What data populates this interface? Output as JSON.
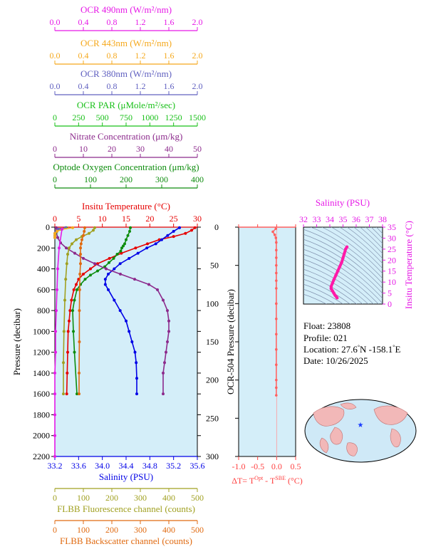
{
  "chart_data": [
    {
      "type": "line",
      "panel": "main-profile",
      "ylabel": "Pressure (decibar)",
      "ylim": [
        0,
        2200
      ],
      "yticks": [
        "0",
        "200",
        "400",
        "600",
        "800",
        "1000",
        "1200",
        "1400",
        "1600",
        "1800",
        "2000",
        "2200"
      ],
      "grid": false,
      "background": "#d4eef9",
      "top_axes": [
        {
          "key": "ocr490",
          "label": "OCR 490nm (W/m²/nm)",
          "color": "#e619e6",
          "range": [
            0,
            2
          ],
          "ticks": [
            "0.0",
            "0.4",
            "0.8",
            "1.2",
            "1.6",
            "2.0"
          ]
        },
        {
          "key": "ocr443",
          "label": "OCR 443nm (W/m²/nm)",
          "color": "#f5a81c",
          "range": [
            0,
            2
          ],
          "ticks": [
            "0.0",
            "0.4",
            "0.8",
            "1.2",
            "1.6",
            "2.0"
          ]
        },
        {
          "key": "ocr380",
          "label": "OCR 380nm (W/m²/nm)",
          "color": "#6060c0",
          "range": [
            0,
            2
          ],
          "ticks": [
            "0.0",
            "0.4",
            "0.8",
            "1.2",
            "1.6",
            "2.0"
          ]
        },
        {
          "key": "par",
          "label": "OCR PAR (μMole/m²/sec)",
          "color": "#19c019",
          "range": [
            0,
            1500
          ],
          "ticks": [
            "0",
            "250",
            "500",
            "750",
            "1000",
            "1250",
            "1500"
          ]
        },
        {
          "key": "nitrate",
          "label": "Nitrate Concentration (μm/kg)",
          "color": "#8c2a8c",
          "range": [
            0,
            50
          ],
          "ticks": [
            "0",
            "10",
            "20",
            "30",
            "40",
            "50"
          ]
        },
        {
          "key": "oxygen",
          "label": "Optode Oxygen Concentration (μm/kg)",
          "color": "#0d8c0d",
          "range": [
            0,
            400
          ],
          "ticks": [
            "0",
            "100",
            "200",
            "300",
            "400"
          ]
        },
        {
          "key": "temperature",
          "label": "Insitu Temperature (°C)",
          "color": "#e60000",
          "range": [
            0,
            30
          ],
          "ticks": [
            "0",
            "5",
            "10",
            "15",
            "20",
            "25",
            "30"
          ]
        }
      ],
      "bottom_axes": [
        {
          "key": "salinity",
          "label": "Salinity (PSU)",
          "color": "#0000e6",
          "range": [
            33.2,
            35.6
          ],
          "ticks": [
            "33.2",
            "33.6",
            "34.0",
            "34.4",
            "34.8",
            "35.2",
            "35.6"
          ]
        },
        {
          "key": "fluorescence",
          "label": "FLBB Fluorescence channel (counts)",
          "color": "#a0a020",
          "range": [
            0,
            500
          ],
          "ticks": [
            "0",
            "100",
            "200",
            "300",
            "400",
            "500"
          ]
        },
        {
          "key": "backscatter",
          "label": "FLBB Backscatter channel (counts)",
          "color": "#e06a10",
          "range": [
            0,
            500
          ],
          "ticks": [
            "0",
            "100",
            "200",
            "300",
            "400",
            "500"
          ]
        }
      ],
      "series": [
        {
          "axis": "temperature",
          "x": [
            29.5,
            28.8,
            27.5,
            25.0,
            22.0,
            19.5,
            17.0,
            14.0,
            11.5,
            9.0,
            7.5,
            6.0,
            5.0,
            4.5,
            4.0,
            3.5,
            3.2,
            3.0,
            2.8,
            2.7,
            2.6,
            2.5
          ],
          "y": [
            5,
            30,
            60,
            90,
            120,
            160,
            200,
            250,
            300,
            350,
            400,
            450,
            500,
            550,
            600,
            700,
            800,
            900,
            1000,
            1200,
            1400,
            1600
          ]
        },
        {
          "axis": "salinity",
          "x": [
            35.3,
            35.2,
            35.1,
            35.0,
            34.9,
            34.75,
            34.6,
            34.45,
            34.3,
            34.2,
            34.1,
            34.05,
            34.05,
            34.1,
            34.2,
            34.3,
            34.4,
            34.45,
            34.5,
            34.55,
            34.57,
            34.58,
            34.58
          ],
          "y": [
            5,
            40,
            80,
            120,
            160,
            200,
            250,
            300,
            350,
            400,
            450,
            500,
            550,
            600,
            700,
            800,
            900,
            1000,
            1100,
            1200,
            1300,
            1450,
            1600
          ]
        },
        {
          "axis": "oxygen",
          "x": [
            212,
            210,
            205,
            200,
            196,
            192,
            188,
            185,
            175,
            165,
            152,
            140,
            120,
            100,
            85,
            72,
            62,
            55,
            50,
            52,
            55,
            62
          ],
          "y": [
            5,
            40,
            80,
            120,
            160,
            180,
            200,
            230,
            260,
            300,
            340,
            380,
            420,
            460,
            500,
            550,
            600,
            700,
            800,
            1000,
            1200,
            1600
          ]
        },
        {
          "axis": "nitrate",
          "x": [
            0.5,
            0.5,
            1,
            2,
            4,
            7,
            10,
            14,
            18,
            23,
            28,
            33,
            36,
            38,
            39.5,
            40,
            40,
            39.5,
            39,
            38.5,
            38,
            38
          ],
          "y": [
            5,
            50,
            100,
            150,
            200,
            250,
            300,
            350,
            400,
            450,
            500,
            550,
            600,
            700,
            800,
            900,
            1000,
            1100,
            1200,
            1300,
            1400,
            1600
          ]
        },
        {
          "axis": "fluorescence",
          "x": [
            140,
            135,
            120,
            95,
            75,
            60,
            50,
            45,
            42,
            38,
            35,
            32,
            30,
            30
          ],
          "y": [
            5,
            30,
            60,
            90,
            120,
            160,
            200,
            260,
            350,
            500,
            700,
            1000,
            1300,
            1600
          ]
        },
        {
          "axis": "backscatter",
          "x": [
            105,
            103,
            100,
            95,
            92,
            90,
            90,
            90,
            88,
            87,
            86,
            86,
            85,
            85
          ],
          "y": [
            5,
            40,
            80,
            120,
            160,
            200,
            260,
            350,
            450,
            600,
            800,
            1100,
            1400,
            1600
          ]
        },
        {
          "axis": "par",
          "x": [
            120,
            60,
            20,
            5,
            0,
            0
          ],
          "y": [
            5,
            20,
            40,
            60,
            80,
            100
          ]
        },
        {
          "axis": "ocr380",
          "x": [
            0.15,
            0.05,
            0.02,
            0,
            0,
            0
          ],
          "y": [
            5,
            20,
            40,
            60,
            80,
            100
          ]
        },
        {
          "axis": "ocr443",
          "x": [
            0.25,
            0.1,
            0.03,
            0,
            0,
            0
          ],
          "y": [
            5,
            20,
            40,
            60,
            80,
            100
          ]
        },
        {
          "axis": "ocr490",
          "x": [
            0.1,
            0.06,
            0.04,
            0.03,
            0.02,
            0.01,
            0.01,
            0,
            0,
            0,
            0,
            0
          ],
          "y": [
            20,
            200,
            400,
            600,
            800,
            1000,
            1200,
            1400,
            1600,
            1800,
            2000,
            2200
          ]
        }
      ]
    },
    {
      "type": "line",
      "panel": "delta-t",
      "ylabel": "OCR-504 Pressure (decibar)",
      "ylim": [
        0,
        300
      ],
      "yticks": [
        "0",
        "50",
        "100",
        "150",
        "200",
        "250",
        "300"
      ],
      "xlim": [
        -1.0,
        0.5
      ],
      "xticks": [
        "-1.0",
        "-0.5",
        "0.0",
        "0.5"
      ],
      "xlabel_parts": {
        "prefix": "ΔT= T",
        "sup1": "Opt",
        "mid": " - T",
        "sup2": "SBE",
        "suffix": " (°C)"
      },
      "background": "#d4eef9",
      "color": "#ff6060",
      "series": [
        {
          "x": [
            -0.02,
            -0.1,
            -0.05,
            -0.02,
            -0.01,
            -0.01,
            -0.01,
            -0.01,
            -0.01,
            -0.01,
            -0.01,
            -0.01,
            -0.01,
            -0.01,
            -0.01,
            -0.01,
            -0.01,
            -0.01,
            -0.01
          ],
          "y": [
            2,
            6,
            10,
            14,
            20,
            30,
            40,
            50,
            60,
            70,
            80,
            100,
            120,
            140,
            160,
            180,
            200,
            210,
            220
          ]
        }
      ]
    },
    {
      "type": "scatter",
      "panel": "ts",
      "xlabel": "Salinity (PSU)",
      "ylabel": "Insitu Temperature (°C)",
      "xlim": [
        32,
        38
      ],
      "ylim": [
        0,
        35
      ],
      "xticks": [
        "32",
        "33",
        "34",
        "35",
        "36",
        "37",
        "38"
      ],
      "yticks": [
        "0",
        "5",
        "10",
        "15",
        "20",
        "25",
        "30",
        "35"
      ],
      "color": "#ff1aa8",
      "series": [
        {
          "x": [
            35.3,
            35.2,
            35.1,
            35.0,
            34.9,
            34.75,
            34.6,
            34.45,
            34.3,
            34.2,
            34.1,
            34.1,
            34.2,
            34.3,
            34.4,
            34.5,
            34.55
          ],
          "y": [
            26,
            25,
            23,
            21,
            19,
            17,
            15,
            13,
            11,
            9.5,
            8,
            7,
            6,
            5,
            4,
            3.3,
            2.8
          ]
        }
      ]
    }
  ],
  "info": {
    "float": "Float:  23808",
    "profile": "Profile:  021",
    "location_prefix": "Location:  27.6",
    "location_n": "N  -158.1",
    "location_e": "E",
    "deg": "°",
    "date": "Date:  10/26/2025"
  }
}
